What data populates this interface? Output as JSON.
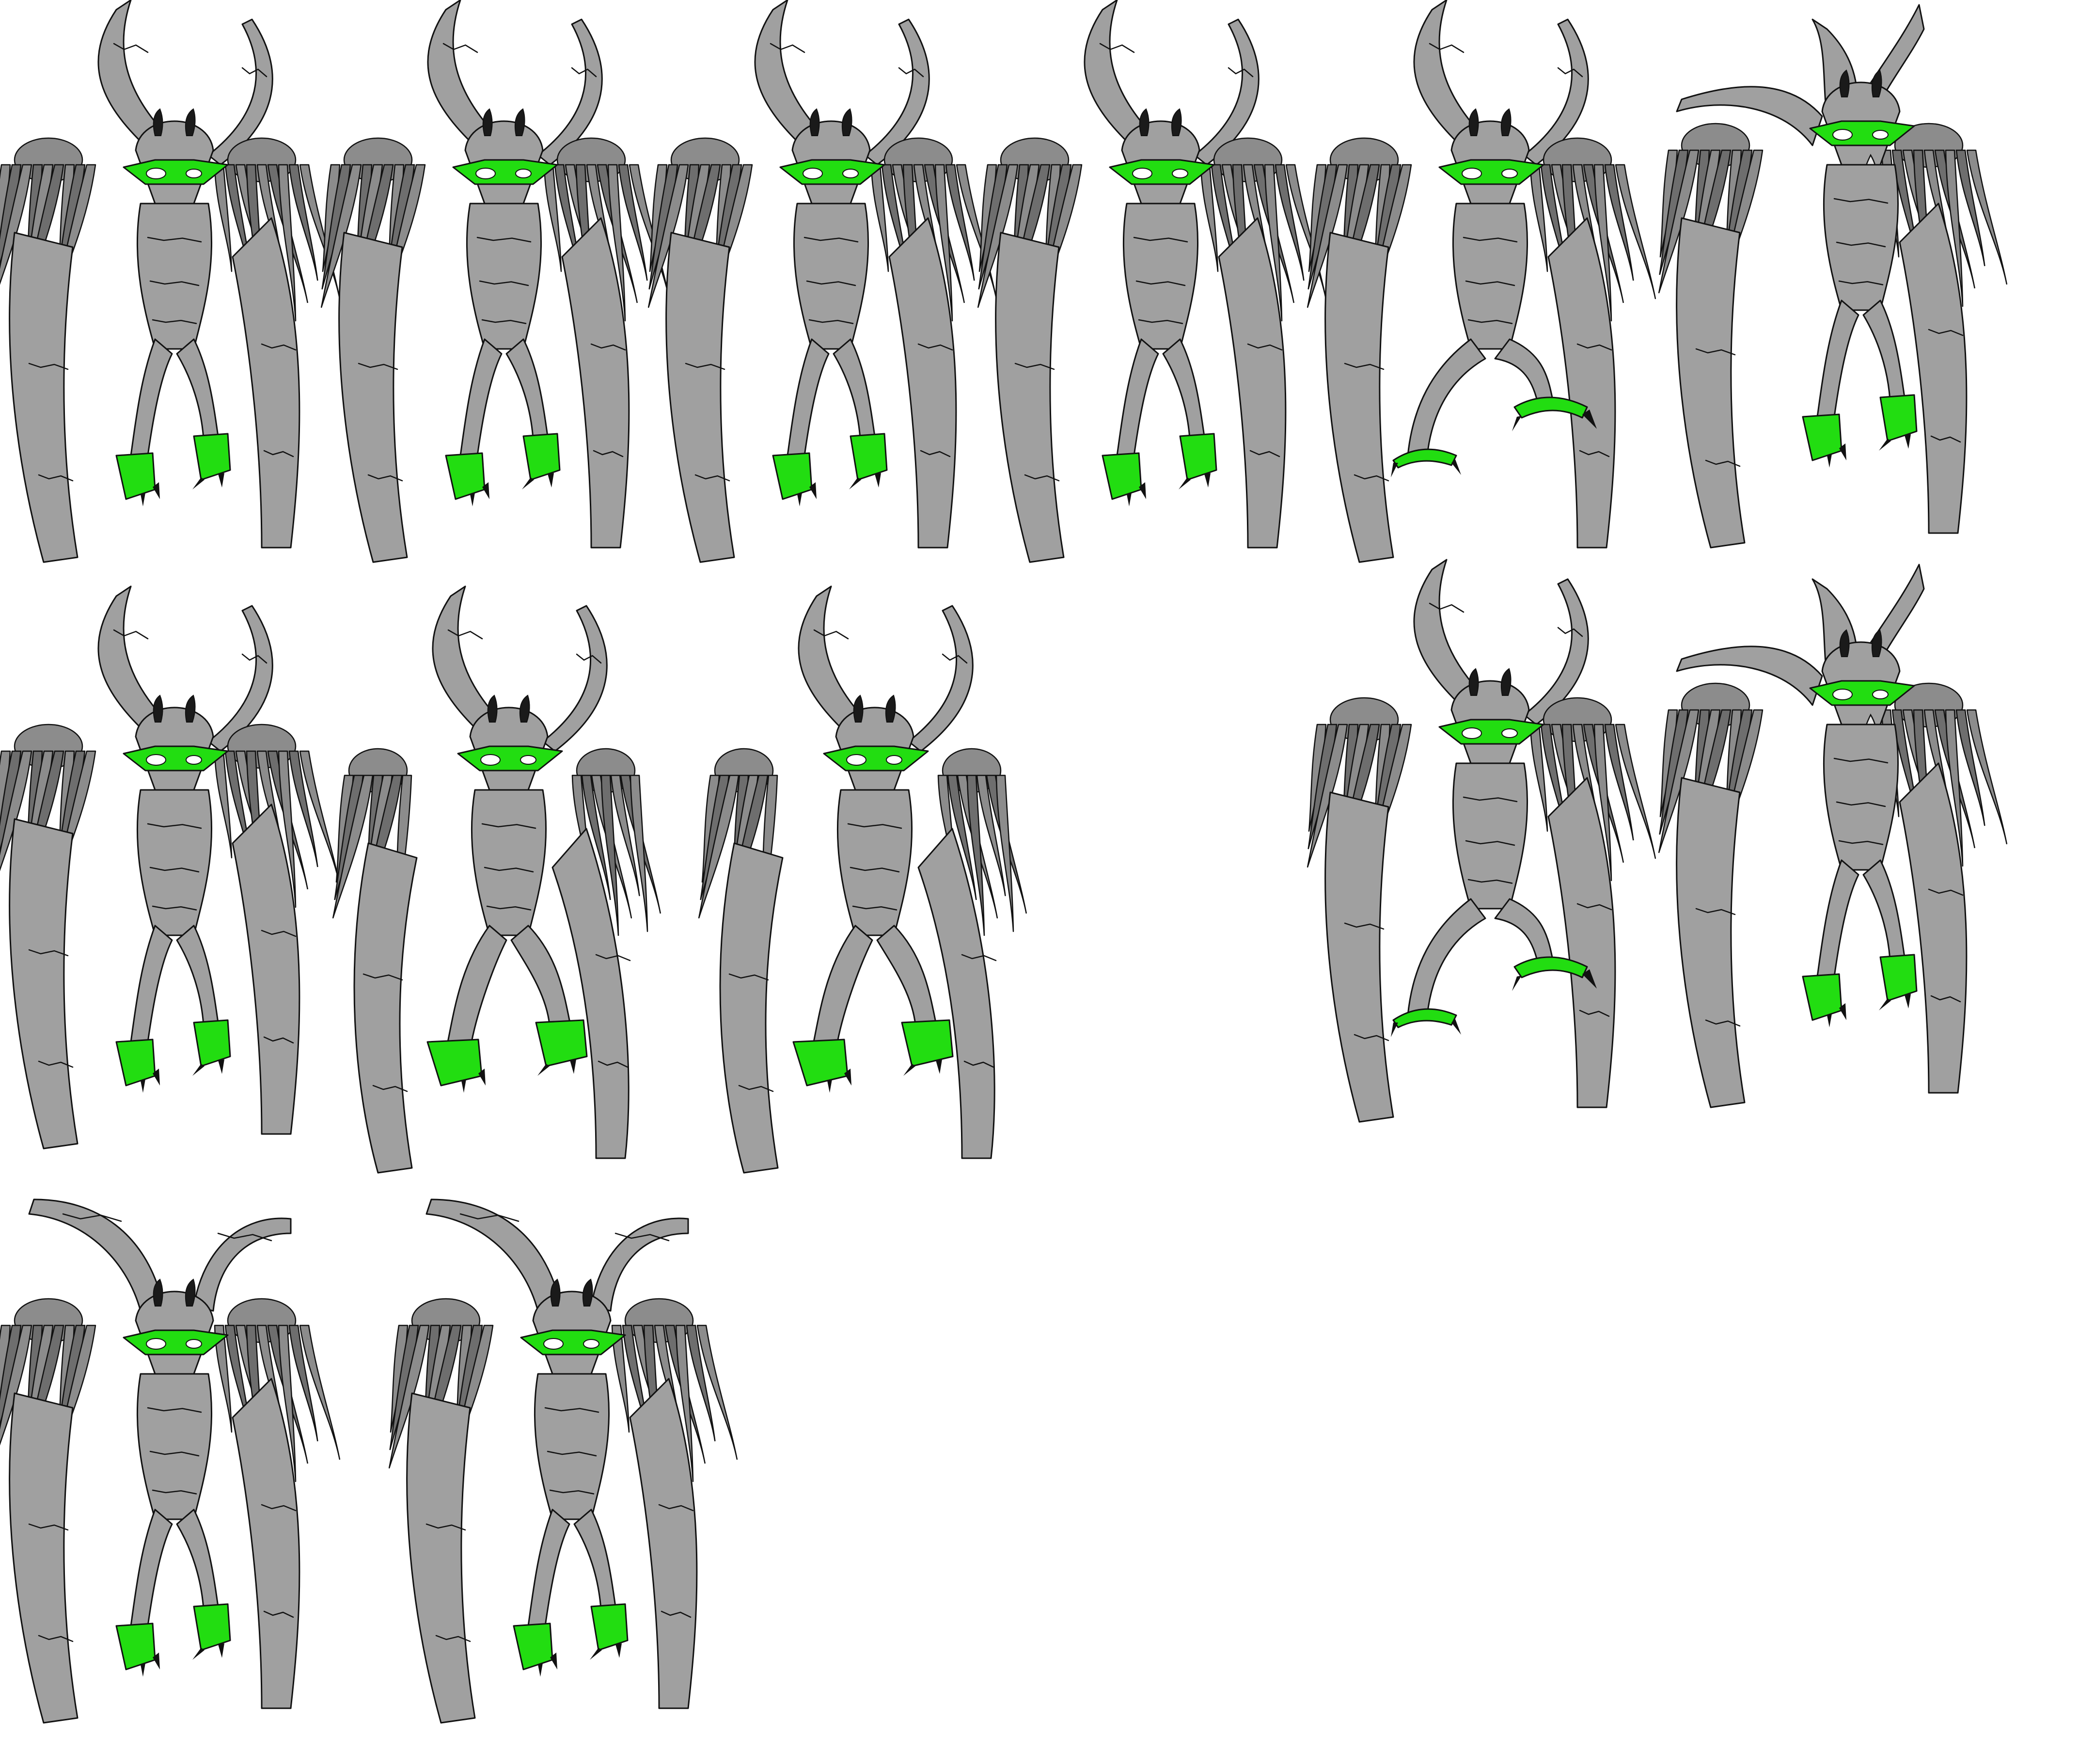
{
  "sheet": {
    "background": "#ffffff"
  },
  "palette": {
    "stone": "#a0a0a0",
    "stone_light": "#b4b4b4",
    "hair": "#8c8c8c",
    "glow": "#22dd11",
    "outline": "#111111"
  },
  "rows": [
    {
      "row": 1,
      "poses": [
        "idle",
        "idle",
        "idle",
        "idle",
        "crouch-claws",
        "look-up"
      ]
    },
    {
      "row": 2,
      "poses": [
        "idle",
        "spread",
        "spread",
        "crouch-claws",
        "look-up"
      ]
    },
    {
      "row": 3,
      "poses": [
        "wide-horns",
        "wide-horns"
      ]
    }
  ],
  "sprites": [
    {
      "id": "sprite-r1-1",
      "pose": "idle"
    },
    {
      "id": "sprite-r1-2",
      "pose": "idle"
    },
    {
      "id": "sprite-r1-3",
      "pose": "idle"
    },
    {
      "id": "sprite-r1-4",
      "pose": "idle"
    },
    {
      "id": "sprite-r1-5",
      "pose": "crouch-claws"
    },
    {
      "id": "sprite-r1-6",
      "pose": "look-up"
    },
    {
      "id": "sprite-r2-1",
      "pose": "idle"
    },
    {
      "id": "sprite-r2-2",
      "pose": "spread"
    },
    {
      "id": "sprite-r2-3",
      "pose": "spread"
    },
    {
      "id": "sprite-r2-4",
      "pose": "crouch-claws"
    },
    {
      "id": "sprite-r2-5",
      "pose": "look-up"
    },
    {
      "id": "sprite-r3-1",
      "pose": "wide-horns"
    },
    {
      "id": "sprite-r3-2",
      "pose": "wide-horns"
    }
  ]
}
